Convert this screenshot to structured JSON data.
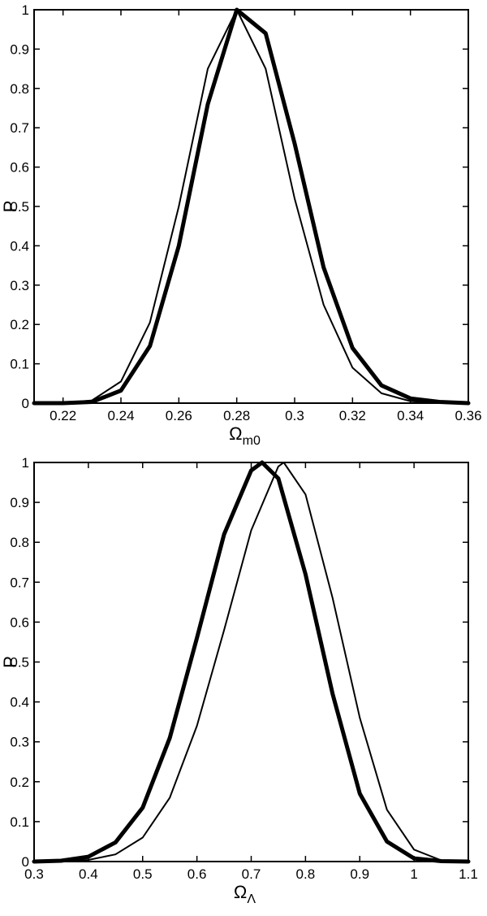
{
  "chart_data": [
    {
      "type": "line",
      "xlabel": "Ω",
      "xlabel_sub": "m0",
      "ylabel": "P",
      "xlim": [
        0.21,
        0.36
      ],
      "ylim": [
        0,
        1
      ],
      "xticks": [
        0.22,
        0.24,
        0.26,
        0.28,
        0.3,
        0.32,
        0.34,
        0.36
      ],
      "xtick_labels": [
        "0.22",
        "0.24",
        "0.26",
        "0.28",
        "0.3",
        "0.32",
        "0.34",
        "0.36"
      ],
      "yticks": [
        0,
        0.1,
        0.2,
        0.3,
        0.4,
        0.5,
        0.6,
        0.7,
        0.8,
        0.9,
        1
      ],
      "ytick_labels": [
        "0",
        "0.1",
        "0.2",
        "0.3",
        "0.4",
        "0.5",
        "0.6",
        "0.7",
        "0.8",
        "0.9",
        "1"
      ],
      "grid": false,
      "series": [
        {
          "style": "thick",
          "x": [
            0.21,
            0.22,
            0.23,
            0.24,
            0.25,
            0.26,
            0.27,
            0.28,
            0.29,
            0.3,
            0.31,
            0.32,
            0.33,
            0.34,
            0.35,
            0.36
          ],
          "y": [
            0.0,
            0.0,
            0.003,
            0.032,
            0.145,
            0.4,
            0.76,
            1.0,
            0.94,
            0.66,
            0.345,
            0.14,
            0.045,
            0.012,
            0.003,
            0.0
          ]
        },
        {
          "style": "thin",
          "x": [
            0.21,
            0.22,
            0.23,
            0.24,
            0.25,
            0.26,
            0.27,
            0.28,
            0.29,
            0.3,
            0.31,
            0.32,
            0.33,
            0.34,
            0.35,
            0.36
          ],
          "y": [
            0.0,
            0.0,
            0.007,
            0.055,
            0.205,
            0.5,
            0.85,
            1.0,
            0.85,
            0.52,
            0.25,
            0.09,
            0.025,
            0.005,
            0.001,
            0.0
          ]
        }
      ]
    },
    {
      "type": "line",
      "xlabel": "Ω",
      "xlabel_sub": "Λ",
      "ylabel": "P",
      "xlim": [
        0.3,
        1.1
      ],
      "ylim": [
        0,
        1
      ],
      "xticks": [
        0.3,
        0.4,
        0.5,
        0.6,
        0.7,
        0.8,
        0.9,
        1.0,
        1.1
      ],
      "xtick_labels": [
        "0.3",
        "0.4",
        "0.5",
        "0.6",
        "0.7",
        "0.8",
        "0.9",
        "1",
        "1.1"
      ],
      "yticks": [
        0,
        0.1,
        0.2,
        0.3,
        0.4,
        0.5,
        0.6,
        0.7,
        0.8,
        0.9,
        1
      ],
      "ytick_labels": [
        "0",
        "0.1",
        "0.2",
        "0.3",
        "0.4",
        "0.5",
        "0.6",
        "0.7",
        "0.8",
        "0.9",
        "1"
      ],
      "grid": false,
      "series": [
        {
          "style": "thick",
          "x": [
            0.3,
            0.35,
            0.4,
            0.45,
            0.5,
            0.55,
            0.6,
            0.65,
            0.7,
            0.72,
            0.75,
            0.8,
            0.85,
            0.9,
            0.95,
            1.0,
            1.05,
            1.1
          ],
          "y": [
            0.0,
            0.002,
            0.012,
            0.048,
            0.135,
            0.31,
            0.56,
            0.82,
            0.98,
            1.0,
            0.96,
            0.72,
            0.42,
            0.17,
            0.05,
            0.008,
            0.001,
            0.0
          ]
        },
        {
          "style": "thin",
          "x": [
            0.3,
            0.35,
            0.4,
            0.45,
            0.5,
            0.55,
            0.6,
            0.65,
            0.7,
            0.75,
            0.76,
            0.8,
            0.85,
            0.9,
            0.95,
            1.0,
            1.05,
            1.1
          ],
          "y": [
            0.0,
            0.001,
            0.004,
            0.018,
            0.06,
            0.16,
            0.34,
            0.58,
            0.83,
            0.99,
            1.0,
            0.92,
            0.66,
            0.36,
            0.13,
            0.03,
            0.003,
            0.0
          ]
        }
      ]
    }
  ]
}
